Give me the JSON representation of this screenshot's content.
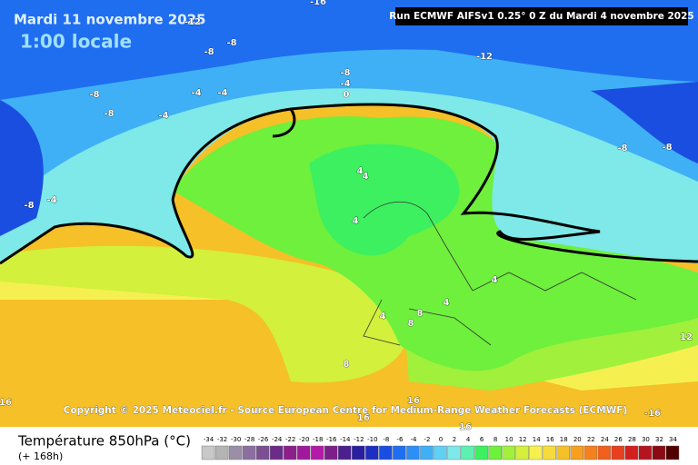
{
  "map": {
    "date": "Mardi 11 novembre 2025",
    "time": "1:00 locale",
    "run": "Run ECMWF AIFSv1 0.25° 0 Z du Mardi 4 novembre 2025",
    "copyright": "Copyright © 2025 Meteociel.fr - Source European Centre for Medium-Range Weather Forecasts (ECMWF)",
    "contour_labels": [
      -16,
      -12,
      -8,
      -8,
      -8,
      -4,
      -4,
      -4,
      -8,
      -4,
      0,
      -12,
      -8,
      -4,
      -8,
      -8,
      -8,
      4,
      4,
      4,
      4,
      4,
      8,
      8,
      4,
      8,
      12,
      16,
      16,
      16,
      -16,
      16
    ]
  },
  "legend": {
    "title": "Température 850hPa (°C)",
    "subtitle": "(+ 168h)",
    "scale": [
      -34,
      -32,
      -30,
      -28,
      -26,
      -24,
      -22,
      -20,
      -18,
      -16,
      -14,
      -12,
      -10,
      -8,
      -6,
      -4,
      -2,
      0,
      2,
      4,
      6,
      8,
      10,
      12,
      14,
      16,
      18,
      20,
      22,
      24,
      26,
      28,
      30,
      32,
      34
    ],
    "colors": [
      "#c8c8c8",
      "#b4b4b4",
      "#9a8fa6",
      "#8c6fa0",
      "#7c4f93",
      "#6a2c87",
      "#8c1f8c",
      "#a0189c",
      "#b41aa8",
      "#7d1f8a",
      "#4b1f8f",
      "#2a1fa0",
      "#1d2ec0",
      "#1a4ee0",
      "#1f6ef0",
      "#2b8ff5",
      "#3fb0f5",
      "#60d0f5",
      "#7fe8e8",
      "#5ef0b0",
      "#3cf060",
      "#6ef03c",
      "#a0f03c",
      "#d2f03c",
      "#f5f050",
      "#f5dc3c",
      "#f5c028",
      "#f5a01e",
      "#f5801e",
      "#f0601e",
      "#e6401e",
      "#d2201e",
      "#b4141e",
      "#8c0a14",
      "#500000"
    ]
  }
}
